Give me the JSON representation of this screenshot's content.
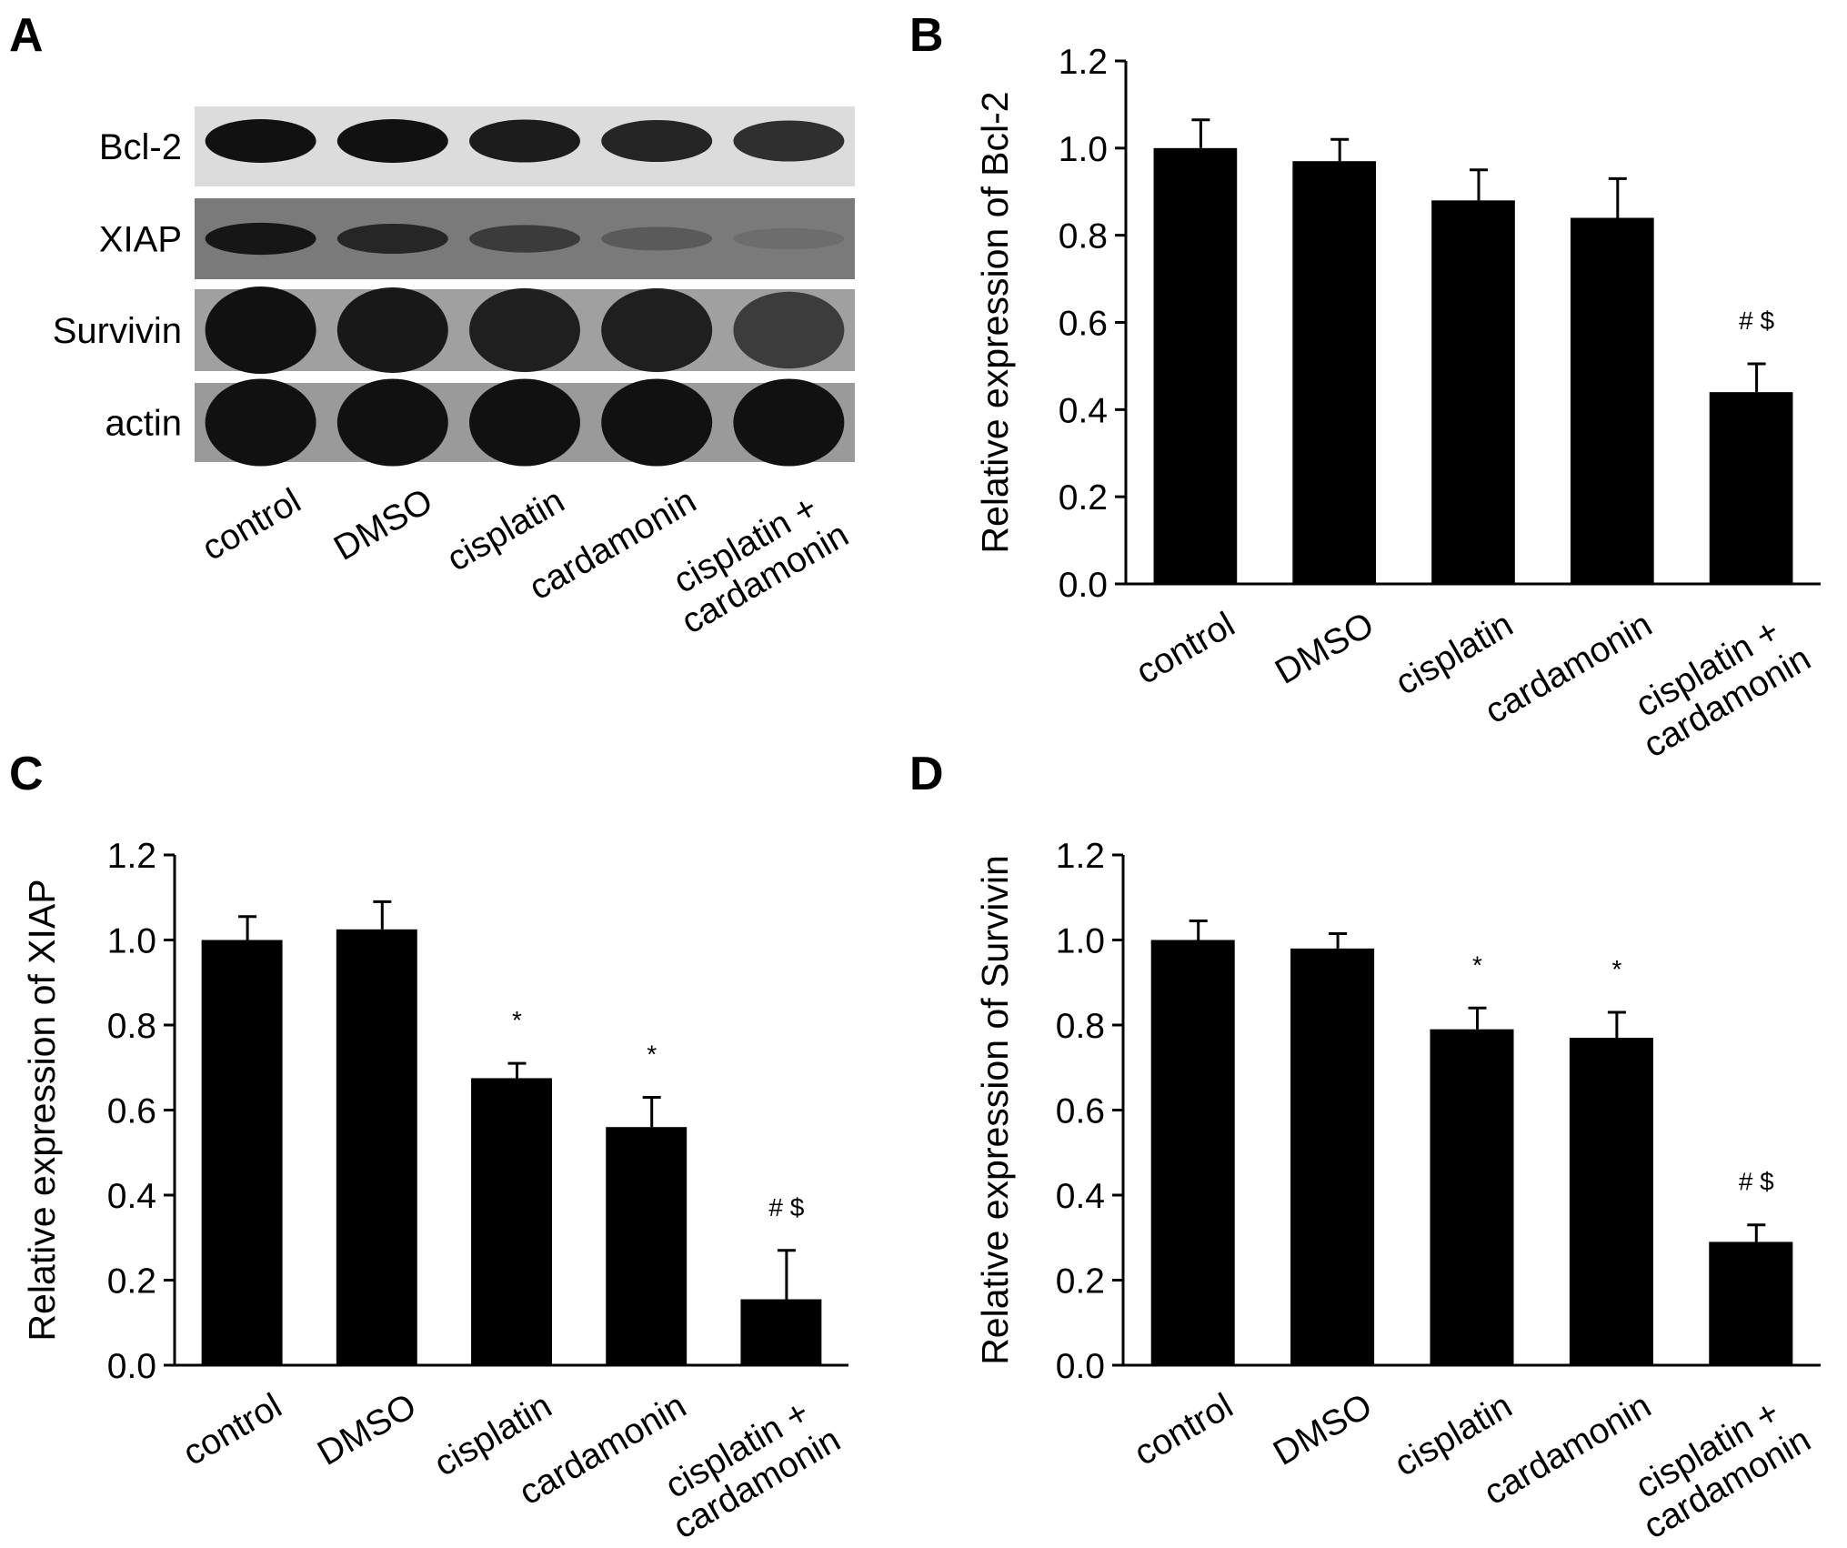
{
  "blot": {
    "label": "A",
    "rows": [
      "Bcl-2",
      "XIAP",
      "Survivin",
      "actin"
    ],
    "lanes": [
      "control",
      "DMSO",
      "cisplatin",
      "cardamonin",
      "cisplatin +\ncardamonin"
    ]
  },
  "chart_data": [
    {
      "type": "bar",
      "label": "B",
      "y_label": "Relative expression of Bcl-2",
      "categories": [
        "control",
        "DMSO",
        "cisplatin",
        "cardamonin",
        "cisplatin +\ncardamonin"
      ],
      "values": [
        1.0,
        0.97,
        0.88,
        0.84,
        0.44
      ],
      "errors": [
        0.065,
        0.05,
        0.07,
        0.09,
        0.065
      ],
      "annotations": [
        null,
        null,
        null,
        null,
        "# $"
      ],
      "color": "#000000",
      "ylim": [
        0,
        1.2
      ],
      "yticks": [
        {
          "value": 0,
          "label": "0.0"
        },
        0.2,
        0.4,
        0.6,
        0.8,
        {
          "value": 1,
          "label": "1.0"
        },
        1.2
      ]
    },
    {
      "type": "bar",
      "label": "C",
      "y_label": "Relative expression of XIAP",
      "categories": [
        "control",
        "DMSO",
        "cisplatin",
        "cardamonin",
        "cisplatin +\ncardamonin"
      ],
      "values": [
        1.0,
        1.025,
        0.675,
        0.56,
        0.155
      ],
      "errors": [
        0.055,
        0.065,
        0.035,
        0.07,
        0.115
      ],
      "annotations": [
        null,
        null,
        "*",
        "*",
        "# $"
      ],
      "color": "#000000",
      "ylim": [
        0,
        1.2
      ],
      "yticks": [
        {
          "value": 0,
          "label": "0.0"
        },
        0.2,
        0.4,
        0.6,
        0.8,
        {
          "value": 1,
          "label": "1.0"
        },
        1.2
      ]
    },
    {
      "type": "bar",
      "label": "D",
      "y_label": "Relative expression of Survivin",
      "categories": [
        "control",
        "DMSO",
        "cisplatin",
        "cardamonin",
        "cisplatin +\ncardamonin"
      ],
      "values": [
        1.0,
        0.98,
        0.79,
        0.77,
        0.29
      ],
      "errors": [
        0.045,
        0.035,
        0.05,
        0.06,
        0.04
      ],
      "annotations": [
        null,
        null,
        "*",
        "*",
        "# $"
      ],
      "color": "#000000",
      "ylim": [
        0,
        1.2
      ],
      "yticks": [
        {
          "value": 0,
          "label": "0.0"
        },
        0.2,
        0.4,
        0.6,
        0.8,
        {
          "value": 1,
          "label": "1.0"
        },
        1.2
      ]
    }
  ]
}
